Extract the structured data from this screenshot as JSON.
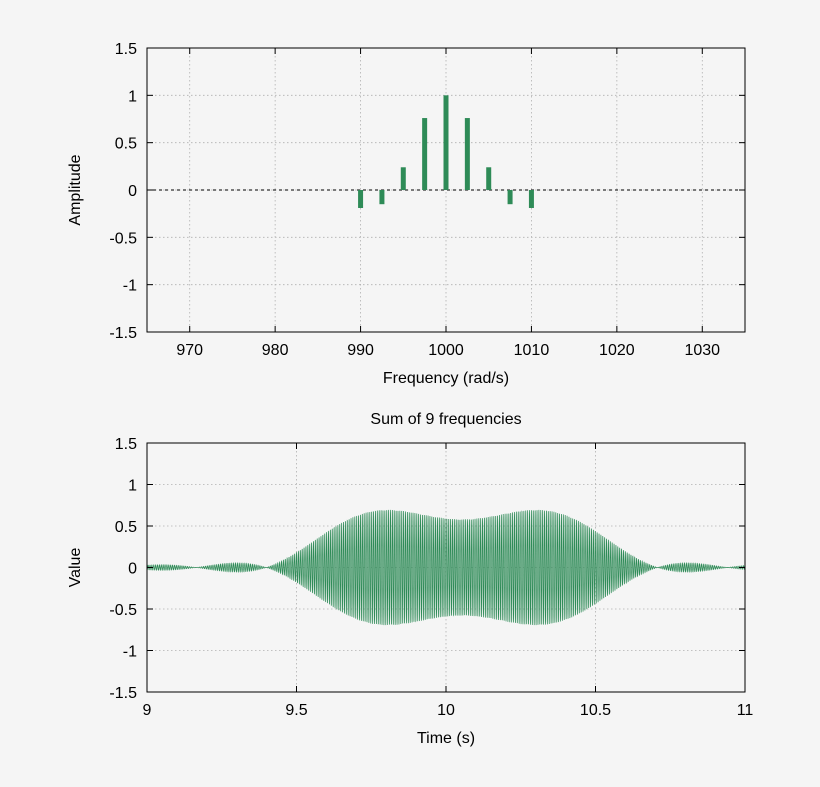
{
  "colors": {
    "series": "#2e8b57",
    "grid": "#b0b0b0",
    "axis": "#000000"
  },
  "chart_data": [
    {
      "type": "bar",
      "title": "",
      "xlabel": "Frequency (rad/s)",
      "ylabel": "Amplitude",
      "xlim": [
        965,
        1035
      ],
      "ylim": [
        -1.5,
        1.5
      ],
      "xticks": [
        970,
        980,
        990,
        1000,
        1010,
        1020,
        1030
      ],
      "yticks": [
        -1.5,
        -1,
        -0.5,
        0,
        0.5,
        1,
        1.5
      ],
      "xtick_labels": [
        "970",
        "980",
        "990",
        "1000",
        "1010",
        "1020",
        "1030"
      ],
      "ytick_labels": [
        "-1.5",
        "-1",
        "-0.5",
        "0",
        "0.5",
        "1",
        "1.5"
      ],
      "grid": true,
      "zero_line": "dashed",
      "series": [
        {
          "x": [
            990,
            992.5,
            995,
            997.5,
            1000,
            1002.5,
            1005,
            1007.5,
            1010
          ],
          "values": [
            -0.19,
            -0.15,
            0.24,
            0.76,
            1.0,
            0.76,
            0.24,
            -0.15,
            -0.19
          ]
        }
      ]
    },
    {
      "type": "line",
      "title": "Sum of 9 frequencies",
      "xlabel": "Time (s)",
      "ylabel": "Value",
      "xlim": [
        9,
        11
      ],
      "ylim": [
        -1.5,
        1.5
      ],
      "xticks": [
        9,
        9.5,
        10,
        10.5,
        11
      ],
      "yticks": [
        -1.5,
        -1,
        -0.5,
        0,
        0.5,
        1,
        1.5
      ],
      "xtick_labels": [
        "9",
        "9.5",
        "10",
        "10.5",
        "11"
      ],
      "ytick_labels": [
        "-1.5",
        "-1",
        "-0.5",
        "0",
        "0.5",
        "1",
        "1.5"
      ],
      "grid": true,
      "signal": {
        "frequencies": [
          990,
          992.5,
          995,
          997.5,
          1000,
          1002.5,
          1005,
          1007.5,
          1010
        ],
        "amplitudes": [
          -0.19,
          -0.15,
          0.24,
          0.76,
          1.0,
          0.76,
          0.24,
          -0.15,
          -0.19
        ],
        "t_start": 9,
        "t_end": 11
      }
    }
  ]
}
